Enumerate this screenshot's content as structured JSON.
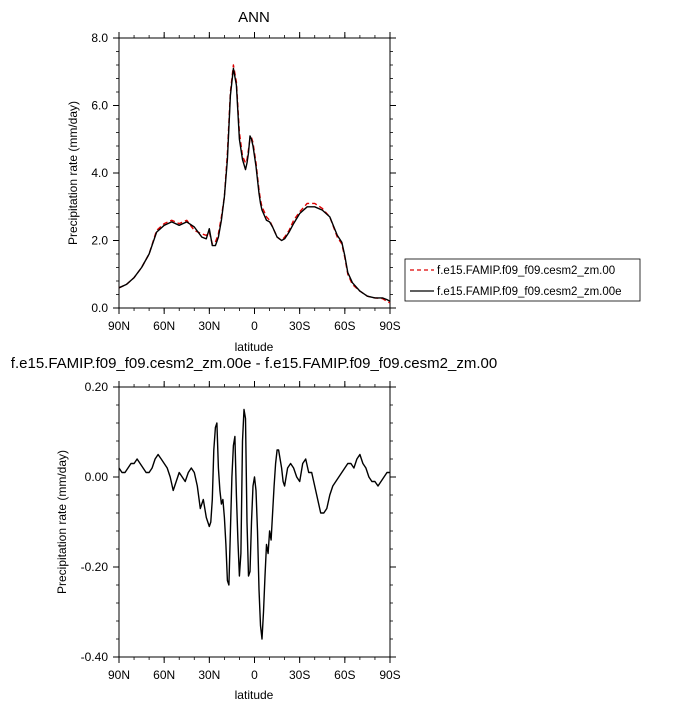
{
  "chart_data": [
    {
      "type": "line",
      "title": "ANN",
      "xlabel": "latitude",
      "ylabel": "Precipitation rate (mm/day)",
      "xlim": [
        90,
        -90
      ],
      "ylim": [
        0.0,
        8.0
      ],
      "x_ticks": [
        90,
        60,
        30,
        0,
        -30,
        -60,
        -90
      ],
      "x_tick_labels": [
        "90N",
        "60N",
        "30N",
        "0",
        "30S",
        "60S",
        "90S"
      ],
      "y_ticks": [
        0,
        2,
        4,
        6,
        8
      ],
      "y_tick_labels": [
        "0.0",
        "2.0",
        "4.0",
        "6.0",
        "8.0"
      ],
      "legend": "right",
      "grid": false,
      "series": [
        {
          "name": "f.e15.FAMIP.f09_f09.cesm2_zm.00",
          "color": "#dd0000",
          "dash": "dashed",
          "x": [
            90,
            85,
            80,
            75,
            70,
            65,
            60,
            55,
            50,
            45,
            40,
            35,
            32,
            30,
            28,
            26,
            24,
            22,
            20,
            18,
            16,
            14,
            12,
            10,
            8,
            6,
            5,
            4,
            3,
            2,
            1,
            0,
            -1,
            -2,
            -3,
            -4,
            -5,
            -6,
            -8,
            -10,
            -12,
            -15,
            -18,
            -20,
            -23,
            -26,
            -30,
            -35,
            -40,
            -45,
            -50,
            -55,
            -58,
            -60,
            -62,
            -65,
            -70,
            -75,
            -80,
            -85,
            -88,
            -90
          ],
          "y": [
            0.6,
            0.7,
            0.9,
            1.2,
            1.6,
            2.3,
            2.5,
            2.6,
            2.5,
            2.6,
            2.3,
            2.2,
            2.15,
            2.25,
            1.9,
            1.95,
            2.2,
            2.7,
            3.3,
            4.6,
            6.4,
            7.2,
            6.7,
            5.2,
            4.5,
            4.3,
            4.4,
            4.7,
            5.0,
            5.05,
            4.9,
            4.6,
            4.3,
            3.9,
            3.5,
            3.2,
            3.0,
            2.9,
            2.7,
            2.6,
            2.4,
            2.1,
            2.0,
            2.1,
            2.3,
            2.6,
            2.85,
            3.1,
            3.1,
            2.95,
            2.7,
            2.1,
            1.9,
            1.5,
            1.0,
            0.7,
            0.5,
            0.35,
            0.3,
            0.28,
            0.2,
            0.15
          ]
        },
        {
          "name": "f.e15.FAMIP.f09_f09.cesm2_zm.00e",
          "color": "#000000",
          "dash": "solid",
          "x": [
            90,
            85,
            80,
            75,
            70,
            65,
            60,
            55,
            50,
            45,
            40,
            35,
            32,
            30,
            28,
            26,
            24,
            22,
            20,
            18,
            16,
            14,
            12,
            10,
            8,
            6,
            5,
            4,
            3,
            2,
            1,
            0,
            -1,
            -2,
            -3,
            -4,
            -5,
            -6,
            -8,
            -10,
            -12,
            -15,
            -18,
            -20,
            -23,
            -26,
            -30,
            -35,
            -40,
            -45,
            -50,
            -55,
            -58,
            -60,
            -62,
            -65,
            -70,
            -75,
            -80,
            -85,
            -88,
            -90
          ],
          "y": [
            0.6,
            0.7,
            0.9,
            1.2,
            1.6,
            2.25,
            2.45,
            2.55,
            2.45,
            2.55,
            2.4,
            2.1,
            2.05,
            2.35,
            1.85,
            1.85,
            2.1,
            2.6,
            3.3,
            4.4,
            6.3,
            7.1,
            6.6,
            5.0,
            4.4,
            4.1,
            4.3,
            4.6,
            5.1,
            5.0,
            4.8,
            4.5,
            4.2,
            3.8,
            3.4,
            3.1,
            2.9,
            2.8,
            2.6,
            2.55,
            2.4,
            2.1,
            2.0,
            2.05,
            2.25,
            2.5,
            2.8,
            3.0,
            3.0,
            2.9,
            2.7,
            2.15,
            1.95,
            1.55,
            1.05,
            0.75,
            0.5,
            0.35,
            0.3,
            0.3,
            0.25,
            0.2
          ]
        }
      ]
    },
    {
      "type": "line",
      "title": "f.e15.FAMIP.f09_f09.cesm2_zm.00e - f.e15.FAMIP.f09_f09.cesm2_zm.00",
      "xlabel": "latitude",
      "ylabel": "Precipitation rate (mm/day)",
      "xlim": [
        90,
        -90
      ],
      "ylim": [
        -0.4,
        0.2
      ],
      "x_ticks": [
        90,
        60,
        30,
        0,
        -30,
        -60,
        -90
      ],
      "x_tick_labels": [
        "90N",
        "60N",
        "30N",
        "0",
        "30S",
        "60S",
        "90S"
      ],
      "y_ticks": [
        -0.4,
        -0.2,
        0.0,
        0.2
      ],
      "y_tick_labels": [
        "-0.40",
        "-0.20",
        "0.00",
        "0.20"
      ],
      "grid": false,
      "series": [
        {
          "color": "#000000",
          "dash": "solid",
          "x": [
            90,
            88,
            86,
            84,
            82,
            80,
            78,
            76,
            74,
            72,
            70,
            68,
            66,
            64,
            62,
            60,
            58,
            56,
            54,
            52,
            50,
            48,
            46,
            44,
            42,
            40,
            38,
            36,
            34,
            32,
            30,
            29,
            28,
            27,
            26,
            25,
            24,
            23,
            22,
            21,
            20,
            19,
            18,
            17,
            16,
            15,
            14,
            13,
            12,
            11,
            10,
            9,
            8,
            7,
            6,
            5,
            4,
            3,
            2,
            1,
            0,
            -1,
            -2,
            -3,
            -4,
            -5,
            -6,
            -7,
            -8,
            -9,
            -10,
            -11,
            -12,
            -13,
            -14,
            -15,
            -16,
            -17,
            -18,
            -19,
            -20,
            -22,
            -24,
            -26,
            -28,
            -30,
            -32,
            -34,
            -36,
            -38,
            -40,
            -42,
            -44,
            -46,
            -48,
            -50,
            -52,
            -54,
            -56,
            -58,
            -60,
            -62,
            -64,
            -66,
            -68,
            -70,
            -72,
            -74,
            -76,
            -78,
            -80,
            -82,
            -84,
            -86,
            -88,
            -90
          ],
          "y": [
            0.02,
            0.01,
            0.01,
            0.02,
            0.03,
            0.03,
            0.04,
            0.03,
            0.02,
            0.01,
            0.01,
            0.02,
            0.04,
            0.05,
            0.04,
            0.03,
            0.02,
            0.0,
            -0.03,
            -0.01,
            0.01,
            0.0,
            -0.01,
            0.01,
            0.02,
            0.01,
            -0.02,
            -0.07,
            -0.05,
            -0.09,
            -0.11,
            -0.1,
            -0.05,
            0.06,
            0.11,
            0.12,
            0.02,
            -0.03,
            -0.06,
            -0.05,
            -0.09,
            -0.15,
            -0.23,
            -0.24,
            -0.12,
            0.0,
            0.07,
            0.09,
            -0.04,
            -0.14,
            -0.22,
            -0.17,
            0.08,
            0.15,
            0.13,
            -0.1,
            -0.22,
            -0.21,
            -0.1,
            -0.02,
            0.0,
            -0.03,
            -0.12,
            -0.25,
            -0.33,
            -0.36,
            -0.3,
            -0.22,
            -0.15,
            -0.17,
            -0.12,
            -0.14,
            -0.08,
            -0.02,
            0.03,
            0.06,
            0.06,
            0.04,
            0.02,
            -0.01,
            -0.02,
            0.02,
            0.03,
            0.02,
            0.0,
            -0.01,
            0.03,
            0.04,
            0.01,
            0.01,
            -0.02,
            -0.05,
            -0.08,
            -0.08,
            -0.07,
            -0.04,
            -0.02,
            -0.01,
            0.0,
            0.01,
            0.02,
            0.03,
            0.03,
            0.02,
            0.04,
            0.05,
            0.03,
            0.02,
            0.0,
            -0.01,
            -0.01,
            -0.02,
            -0.01,
            0.0,
            0.01,
            0.01
          ]
        }
      ]
    }
  ]
}
